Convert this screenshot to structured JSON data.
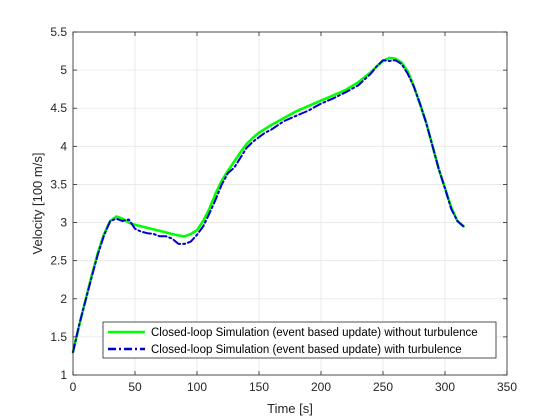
{
  "chart_data": {
    "type": "line",
    "title": "",
    "xlabel": "Time [s]",
    "ylabel": "Velocity [100 m/s]",
    "xlim": [
      0,
      350
    ],
    "ylim": [
      1,
      5.5
    ],
    "xticks": [
      0,
      50,
      100,
      150,
      200,
      250,
      300,
      350
    ],
    "yticks": [
      1,
      1.5,
      2,
      2.5,
      3,
      3.5,
      4,
      4.5,
      5,
      5.5
    ],
    "grid": true,
    "legend_position": "bottom-left",
    "series": [
      {
        "name": "Closed-loop Simulation (event based update) without turbulence",
        "color": "#00ff00",
        "style": "solid",
        "x": [
          0,
          5,
          10,
          15,
          20,
          25,
          30,
          35,
          40,
          45,
          50,
          60,
          70,
          80,
          85,
          90,
          95,
          100,
          105,
          110,
          115,
          120,
          125,
          130,
          135,
          140,
          145,
          150,
          160,
          170,
          180,
          190,
          200,
          210,
          220,
          230,
          240,
          245,
          250,
          255,
          260,
          265,
          270,
          275,
          280,
          285,
          290,
          295,
          300,
          305,
          310,
          315
        ],
        "y": [
          1.3,
          1.65,
          1.98,
          2.3,
          2.6,
          2.85,
          3.02,
          3.08,
          3.05,
          3.0,
          2.97,
          2.93,
          2.89,
          2.85,
          2.83,
          2.82,
          2.85,
          2.9,
          3.02,
          3.18,
          3.38,
          3.55,
          3.68,
          3.8,
          3.92,
          4.03,
          4.11,
          4.18,
          4.28,
          4.37,
          4.46,
          4.53,
          4.6,
          4.67,
          4.74,
          4.84,
          4.97,
          5.05,
          5.12,
          5.16,
          5.15,
          5.1,
          4.98,
          4.78,
          4.55,
          4.3,
          4.0,
          3.7,
          3.45,
          3.2,
          3.02,
          2.95
        ]
      },
      {
        "name": "Closed-loop Simulation (event based update) with turbulence",
        "color": "#0000cc",
        "style": "dash-dot",
        "x": [
          0,
          5,
          10,
          15,
          20,
          25,
          30,
          35,
          40,
          45,
          50,
          55,
          60,
          65,
          70,
          75,
          80,
          85,
          90,
          95,
          100,
          105,
          110,
          115,
          120,
          125,
          130,
          135,
          140,
          145,
          150,
          155,
          160,
          170,
          180,
          190,
          200,
          210,
          220,
          230,
          240,
          245,
          250,
          255,
          260,
          265,
          270,
          275,
          280,
          285,
          290,
          295,
          300,
          305,
          310,
          315
        ],
        "y": [
          1.3,
          1.66,
          1.97,
          2.28,
          2.58,
          2.83,
          3.02,
          3.05,
          3.02,
          3.04,
          2.92,
          2.88,
          2.86,
          2.85,
          2.82,
          2.82,
          2.79,
          2.72,
          2.72,
          2.75,
          2.84,
          2.95,
          3.12,
          3.3,
          3.5,
          3.65,
          3.72,
          3.85,
          3.98,
          4.06,
          4.12,
          4.18,
          4.22,
          4.33,
          4.4,
          4.47,
          4.56,
          4.63,
          4.71,
          4.8,
          4.95,
          5.05,
          5.13,
          5.12,
          5.13,
          5.08,
          4.95,
          4.78,
          4.55,
          4.3,
          4.0,
          3.7,
          3.45,
          3.18,
          3.02,
          2.95
        ]
      }
    ]
  }
}
